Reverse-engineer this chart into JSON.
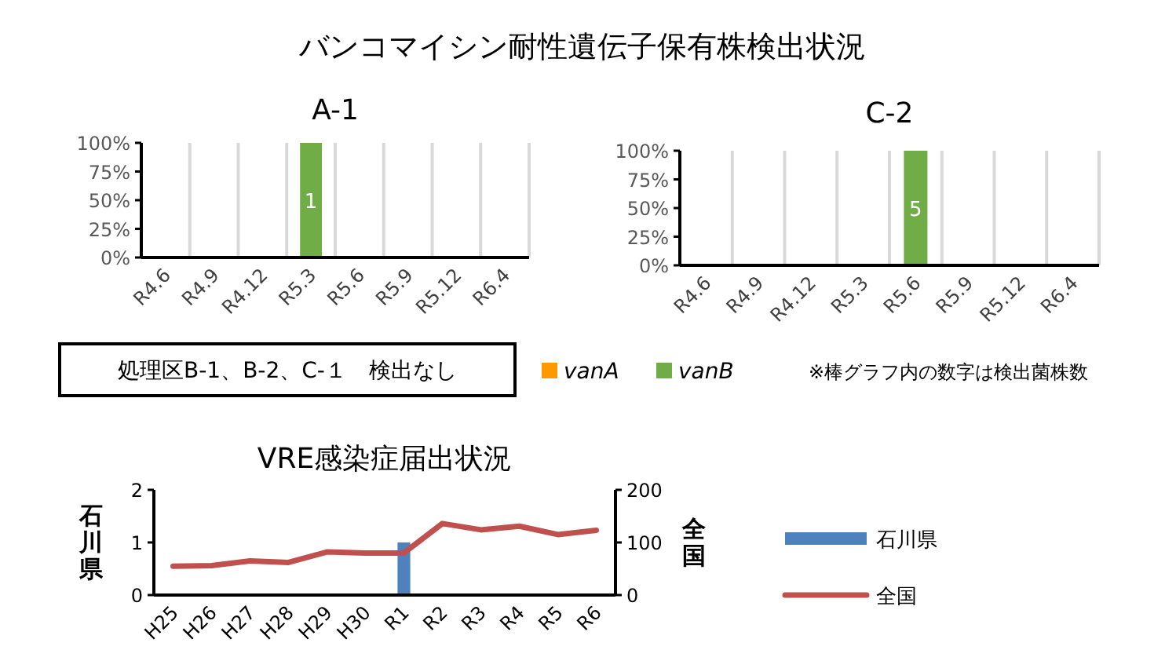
{
  "chart_data": [
    {
      "type": "other",
      "title": "バンコマイシン耐性遺伝子保有株検出状況",
      "annotations": [
        "処理区B-1、B-2、C-１　検出なし",
        "※棒グラフ内の数字は検出菌株数"
      ]
    },
    {
      "type": "bar",
      "title": "A-1",
      "stacked": true,
      "grid": "x",
      "legend": "bottom",
      "categories": [
        "R4.6",
        "R4.9",
        "R4.12",
        "R5.3",
        "R5.6",
        "R5.9",
        "R5.12",
        "R6.4"
      ],
      "ylim": [
        0,
        100
      ],
      "yticks": [
        {
          "value": 0,
          "label": "0%"
        },
        {
          "value": 25,
          "label": "25%"
        },
        {
          "value": 50,
          "label": "50%"
        },
        {
          "value": 75,
          "label": "75%"
        },
        {
          "value": 100,
          "label": "100%"
        }
      ],
      "series": [
        {
          "name": "vanA",
          "color": "#ff9900",
          "values": [
            null,
            null,
            null,
            null,
            null,
            null,
            null,
            null
          ]
        },
        {
          "name": "vanB",
          "color": "#70ad47",
          "values": [
            null,
            null,
            null,
            100,
            null,
            null,
            null,
            null
          ]
        }
      ],
      "annotations": [
        "1"
      ]
    },
    {
      "type": "bar",
      "title": "C-2",
      "stacked": true,
      "grid": "x",
      "categories": [
        "R4.6",
        "R4.9",
        "R4.12",
        "R5.3",
        "R5.6",
        "R5.9",
        "R5.12",
        "R6.4"
      ],
      "ylim": [
        0,
        100
      ],
      "yticks": [
        {
          "value": 0,
          "label": "0%"
        },
        {
          "value": 25,
          "label": "25%"
        },
        {
          "value": 50,
          "label": "50%"
        },
        {
          "value": 75,
          "label": "75%"
        },
        {
          "value": 100,
          "label": "100%"
        }
      ],
      "series": [
        {
          "color": "#70ad47",
          "values": [
            null,
            null,
            null,
            null,
            100,
            null,
            null,
            null
          ]
        }
      ],
      "annotations": [
        "5"
      ]
    },
    {
      "type": "bar",
      "title": "VRE感染症届出状況",
      "ylabel": "石川県",
      "y2label": "全国",
      "legend": "right",
      "categories": [
        "H25",
        "H26",
        "H27",
        "H28",
        "H29",
        "H30",
        "R1",
        "R2",
        "R3",
        "R4",
        "R5",
        "R6"
      ],
      "ylim": [
        0,
        2
      ],
      "yticks": [
        0,
        1,
        2
      ],
      "y2lim": [
        0,
        200
      ],
      "y2ticks": [
        0,
        100,
        200
      ],
      "series": [
        {
          "name": "石川県",
          "color": "#4f81bd",
          "values": [
            0,
            0,
            0,
            0,
            0,
            0,
            1,
            0,
            0,
            0,
            0,
            0
          ]
        },
        {
          "name": "全国",
          "type": "line",
          "axis": "y2",
          "color": "#c0504d",
          "values": [
            55,
            56,
            65,
            62,
            82,
            80,
            80,
            136,
            124,
            131,
            115,
            123
          ]
        }
      ]
    }
  ]
}
